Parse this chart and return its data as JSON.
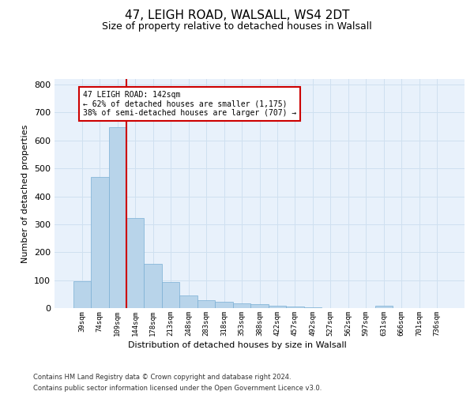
{
  "title1": "47, LEIGH ROAD, WALSALL, WS4 2DT",
  "title2": "Size of property relative to detached houses in Walsall",
  "xlabel": "Distribution of detached houses by size in Walsall",
  "ylabel": "Number of detached properties",
  "footnote1": "Contains HM Land Registry data © Crown copyright and database right 2024.",
  "footnote2": "Contains public sector information licensed under the Open Government Licence v3.0.",
  "bin_labels": [
    "39sqm",
    "74sqm",
    "109sqm",
    "144sqm",
    "178sqm",
    "213sqm",
    "248sqm",
    "283sqm",
    "318sqm",
    "353sqm",
    "388sqm",
    "422sqm",
    "457sqm",
    "492sqm",
    "527sqm",
    "562sqm",
    "597sqm",
    "631sqm",
    "666sqm",
    "701sqm",
    "736sqm"
  ],
  "bar_values": [
    95,
    470,
    648,
    323,
    158,
    93,
    46,
    28,
    22,
    16,
    14,
    8,
    5,
    2,
    0,
    0,
    0,
    9,
    0,
    0,
    0
  ],
  "bar_color": "#b8d4ea",
  "bar_edge_color": "#7aafd4",
  "grid_color": "#cfe0f0",
  "vline_color": "#cc0000",
  "annotation_line1": "47 LEIGH ROAD: 142sqm",
  "annotation_line2": "← 62% of detached houses are smaller (1,175)",
  "annotation_line3": "38% of semi-detached houses are larger (707) →",
  "annotation_box_color": "#ffffff",
  "annotation_box_edge": "#cc0000",
  "ylim": [
    0,
    820
  ],
  "yticks": [
    0,
    100,
    200,
    300,
    400,
    500,
    600,
    700,
    800
  ],
  "bg_color": "#e8f1fb",
  "title1_fontsize": 11,
  "title2_fontsize": 9,
  "vline_bin_index": 3
}
